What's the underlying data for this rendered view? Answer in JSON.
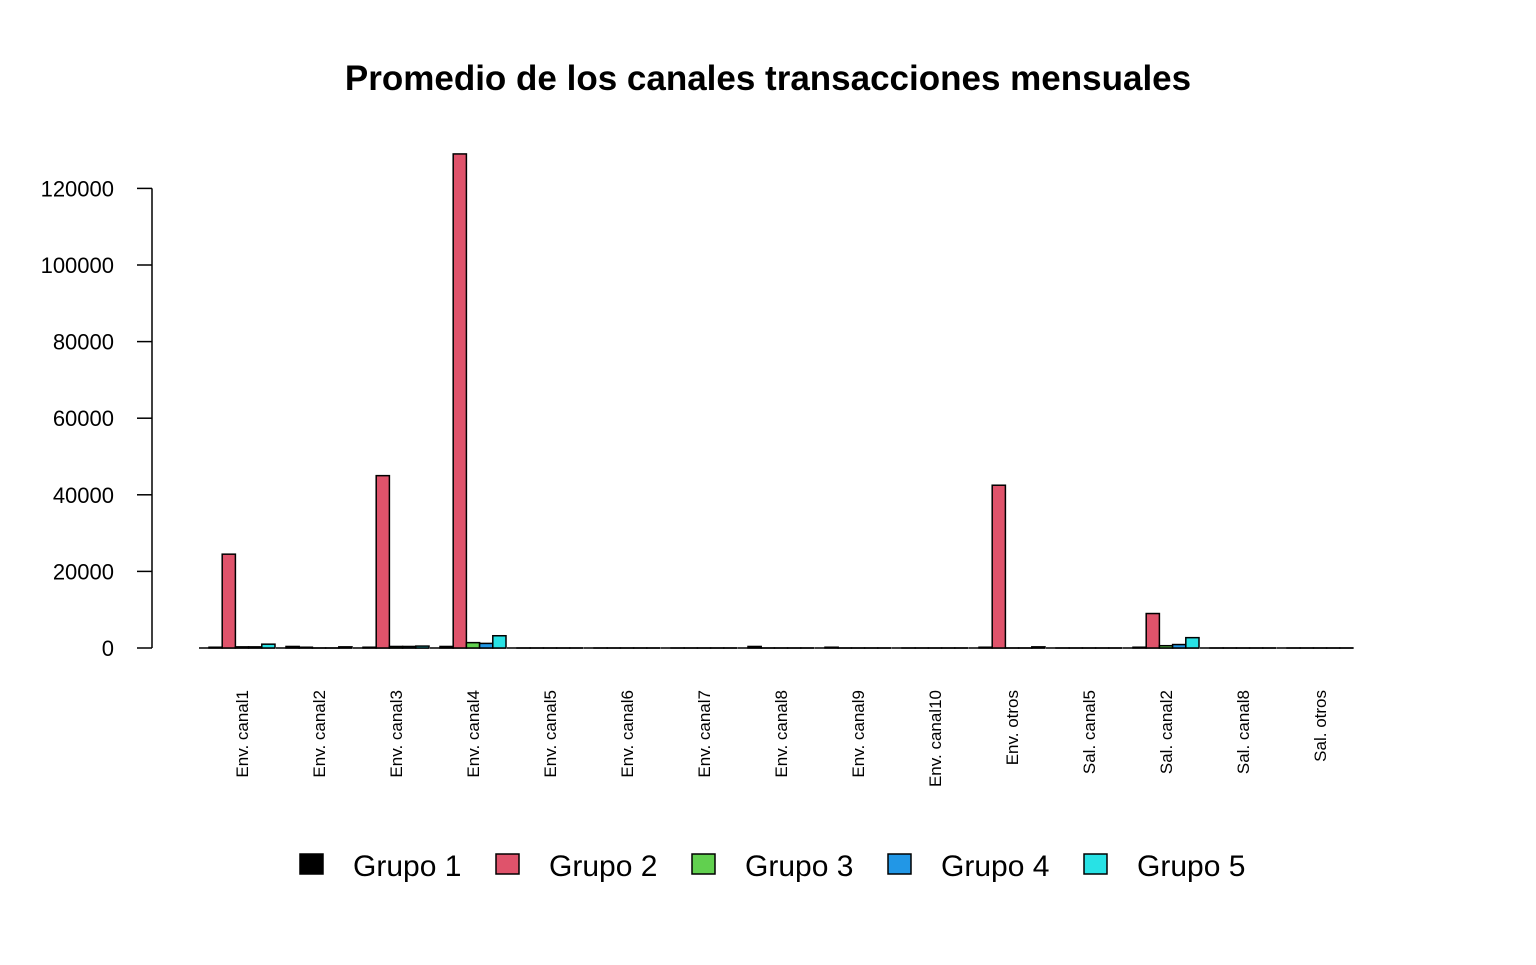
{
  "chart_data": {
    "type": "bar",
    "title": "Promedio de los canales transacciones mensuales",
    "xlabel": "",
    "ylabel": "",
    "ylim": [
      0,
      130000
    ],
    "yticks": [
      0,
      20000,
      40000,
      60000,
      80000,
      100000,
      120000
    ],
    "ytick_labels": [
      "0",
      "20000",
      "40000",
      "60000",
      "80000",
      "100000",
      "120000"
    ],
    "categories": [
      "Env. canal1",
      "Env. canal2",
      "Env. canal3",
      "Env. canal4",
      "Env. canal5",
      "Env. canal6",
      "Env. canal7",
      "Env. canal8",
      "Env. canal9",
      "Env. canal10",
      "Env. otros",
      "Sal. canal5",
      "Sal. canal2",
      "Sal. canal8",
      "Sal. otros"
    ],
    "series": [
      {
        "name": "Grupo 1",
        "color": "#000000",
        "values": [
          200,
          400,
          200,
          400,
          0,
          0,
          0,
          400,
          200,
          0,
          200,
          0,
          200,
          0,
          0
        ]
      },
      {
        "name": "Grupo 2",
        "color": "#DF536B",
        "values": [
          24500,
          200,
          45000,
          129000,
          0,
          0,
          0,
          0,
          0,
          0,
          42500,
          0,
          9000,
          0,
          0
        ]
      },
      {
        "name": "Grupo 3",
        "color": "#61D04F",
        "values": [
          300,
          0,
          400,
          1400,
          0,
          0,
          0,
          0,
          0,
          0,
          0,
          0,
          600,
          0,
          0
        ]
      },
      {
        "name": "Grupo 4",
        "color": "#2297E6",
        "values": [
          300,
          0,
          400,
          1200,
          0,
          0,
          0,
          0,
          0,
          0,
          0,
          0,
          900,
          0,
          0
        ]
      },
      {
        "name": "Grupo 5",
        "color": "#28E2E5",
        "values": [
          1000,
          300,
          500,
          3200,
          0,
          0,
          0,
          0,
          0,
          0,
          300,
          0,
          2700,
          0,
          0
        ]
      }
    ],
    "legend_position": "bottom",
    "grid": false
  }
}
